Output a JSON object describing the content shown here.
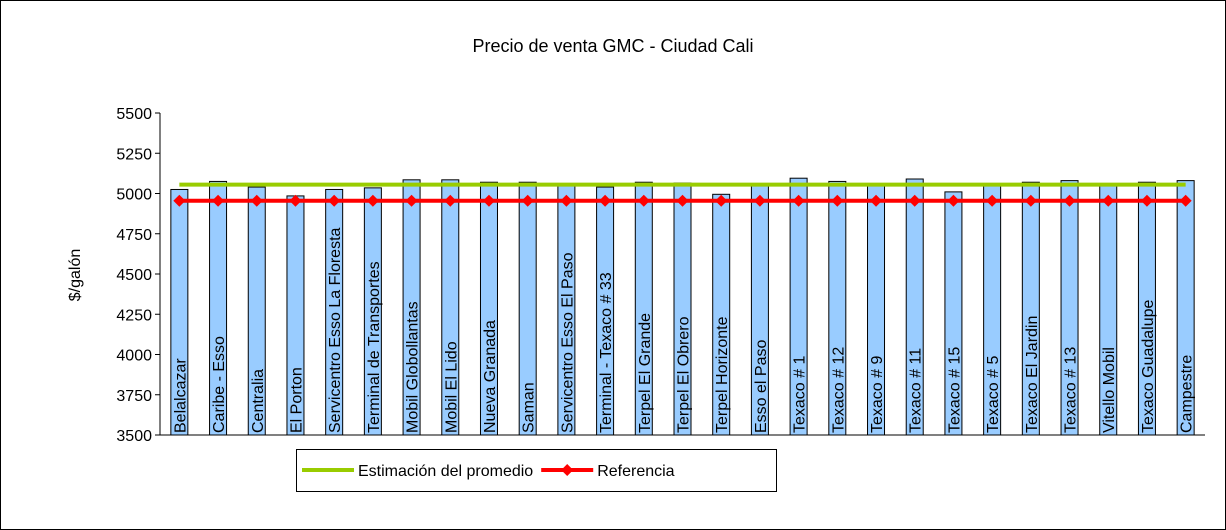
{
  "chart_data": {
    "type": "bar",
    "title": "Precio de venta GMC - Ciudad Cali",
    "y_label": "$/galón",
    "categories": [
      "Belalcazar",
      "Caribe - Esso",
      "Centralia",
      "El Porton",
      "Servicentro Esso La Floresta",
      "Terminal de Transportes",
      "Mobil Globollantas",
      "Mobil El Lido",
      "Nueva Granada",
      "Saman",
      "Servicentro Esso El Paso",
      "Terminal - Texaco # 33",
      "Terpel El Grande",
      "Terpel El Obrero",
      "Terpel Horizonte",
      "Esso el Paso",
      "Texaco # 1",
      "Texaco # 12",
      "Texaco # 9",
      "Texaco # 11",
      "Texaco # 15",
      "Texaco # 5",
      "Texaco El Jardin",
      "Texaco # 13",
      "Vitello Mobil",
      "Texaco Guadalupe",
      "Campestre"
    ],
    "series": [
      {
        "type": "bar",
        "color": "#99ccff",
        "values": [
          5025,
          5075,
          5040,
          4985,
          5025,
          5035,
          5085,
          5085,
          5070,
          5070,
          5050,
          5040,
          5070,
          5065,
          4995,
          5050,
          5095,
          5075,
          5060,
          5090,
          5010,
          5060,
          5070,
          5080,
          5060,
          5070,
          5080
        ]
      },
      {
        "type": "line",
        "name": "Estimación del promedio",
        "color": "#99cc00",
        "values": [
          5055,
          5055,
          5055,
          5055,
          5055,
          5055,
          5055,
          5055,
          5055,
          5055,
          5055,
          5055,
          5055,
          5055,
          5055,
          5055,
          5055,
          5055,
          5055,
          5055,
          5055,
          5055,
          5055,
          5055,
          5055,
          5055,
          5055
        ]
      },
      {
        "type": "line",
        "name": "Referencia",
        "color": "#ff0000",
        "marker": "diamond",
        "values": [
          4955,
          4955,
          4955,
          4955,
          4955,
          4955,
          4955,
          4955,
          4955,
          4955,
          4955,
          4955,
          4955,
          4955,
          4955,
          4955,
          4955,
          4955,
          4955,
          4955,
          4955,
          4955,
          4955,
          4955,
          4955,
          4955,
          4955
        ]
      }
    ],
    "ylim": [
      3500,
      5500
    ],
    "yticks": [
      3500,
      3750,
      4000,
      4250,
      4500,
      4750,
      5000,
      5250,
      5500
    ],
    "legend": "bottom"
  }
}
